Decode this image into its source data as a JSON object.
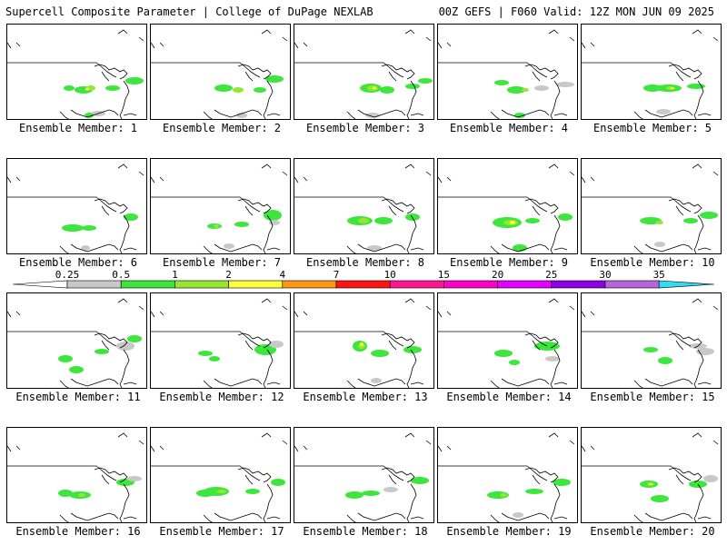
{
  "header": {
    "left_title": "Supercell Composite Parameter | College of DuPage NEXLAB",
    "right_title": "00Z GEFS | F060 Valid: 12Z MON JUN 09 2025"
  },
  "member_label_prefix": "Ensemble Member: ",
  "members": [
    {
      "label": "Ensemble Member: 1"
    },
    {
      "label": "Ensemble Member: 2"
    },
    {
      "label": "Ensemble Member: 3"
    },
    {
      "label": "Ensemble Member: 4"
    },
    {
      "label": "Ensemble Member: 5"
    },
    {
      "label": "Ensemble Member: 6"
    },
    {
      "label": "Ensemble Member: 7"
    },
    {
      "label": "Ensemble Member: 8"
    },
    {
      "label": "Ensemble Member: 9"
    },
    {
      "label": "Ensemble Member: 10"
    },
    {
      "label": "Ensemble Member: 11"
    },
    {
      "label": "Ensemble Member: 12"
    },
    {
      "label": "Ensemble Member: 13"
    },
    {
      "label": "Ensemble Member: 14"
    },
    {
      "label": "Ensemble Member: 15"
    },
    {
      "label": "Ensemble Member: 16"
    },
    {
      "label": "Ensemble Member: 17"
    },
    {
      "label": "Ensemble Member: 18"
    },
    {
      "label": "Ensemble Member: 19"
    },
    {
      "label": "Ensemble Member: 20"
    }
  ],
  "colorbar": {
    "labels": [
      "0.25",
      "0.5",
      "1",
      "2",
      "4",
      "7",
      "10",
      "15",
      "20",
      "25",
      "30",
      "35"
    ],
    "colors": [
      "#c8c8c8",
      "#3ce63c",
      "#96e632",
      "#ffff3c",
      "#ff9614",
      "#ff1414",
      "#ff1493",
      "#ff00c8",
      "#e600ff",
      "#8c00e6",
      "#b464dc",
      "#32dcf0"
    ]
  },
  "colors": {
    "land_outline": "#000000",
    "scp_low": "#c8c8c8",
    "scp_1": "#3ce63c",
    "scp_2": "#96e632",
    "scp_4": "#ffff3c",
    "scp_7": "#ff9614",
    "scp_10": "#ff1414"
  }
}
